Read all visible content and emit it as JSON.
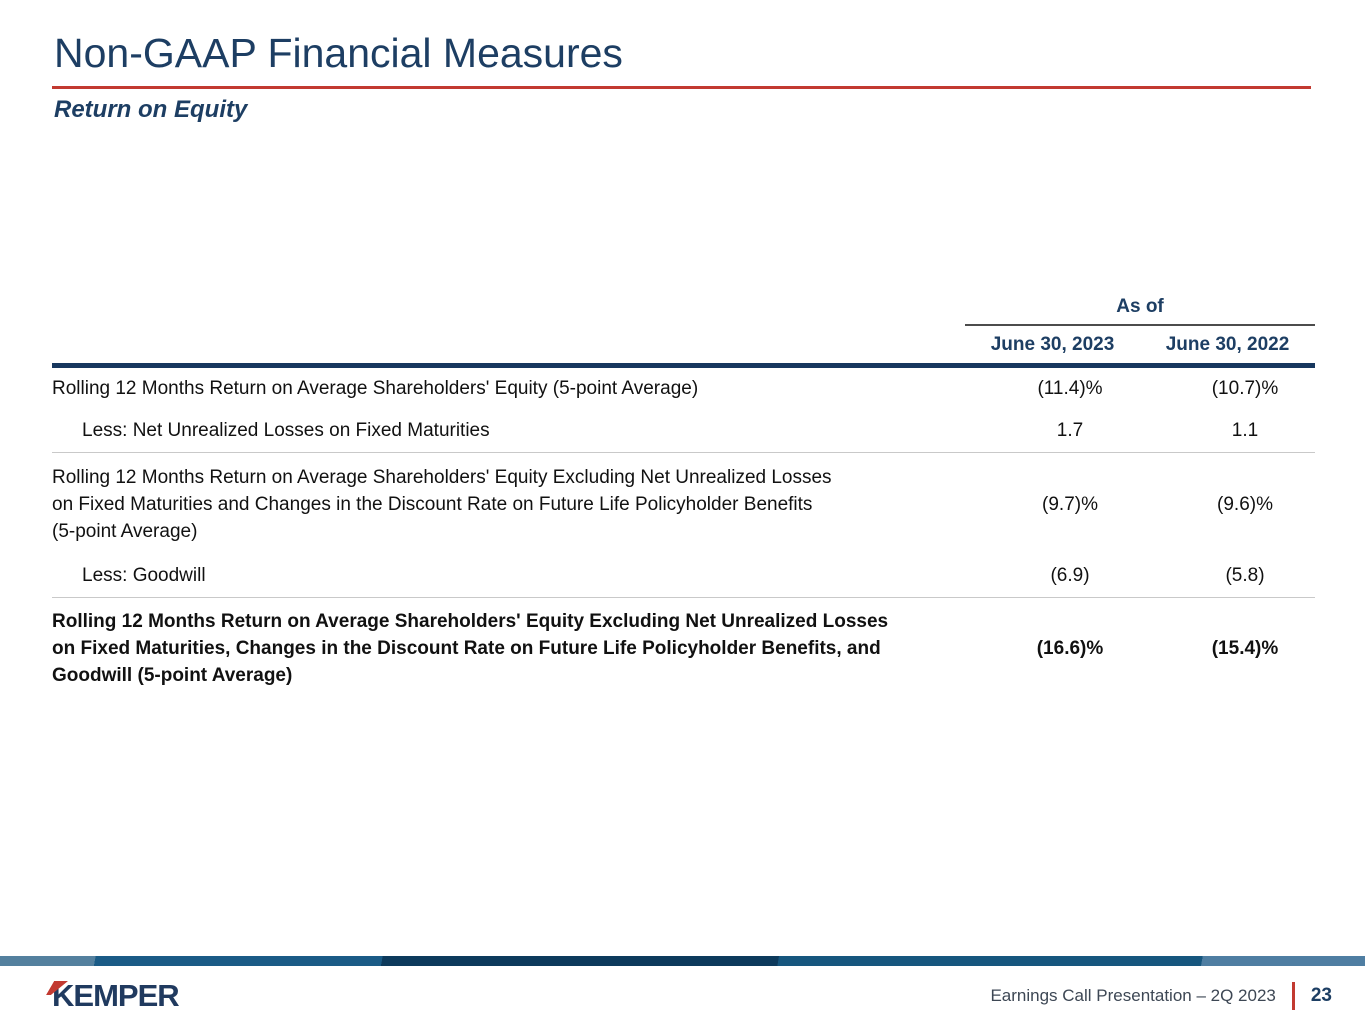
{
  "header": {
    "title": "Non-GAAP Financial Measures",
    "subtitle": "Return on Equity"
  },
  "table": {
    "group_header": "As of",
    "columns": [
      "June 30, 2023",
      "June 30, 2022"
    ],
    "rows": [
      {
        "label": "Rolling 12 Months Return on Average Shareholders' Equity (5-point Average)",
        "values": [
          "(11.4)%",
          "(10.7)%"
        ]
      },
      {
        "label": "Less: Net Unrealized Losses on Fixed Maturities",
        "values": [
          "1.7",
          "1.1"
        ]
      },
      {
        "label": "Rolling 12 Months Return on Average Shareholders' Equity Excluding Net Unrealized Losses\non Fixed Maturities and Changes in the Discount Rate on Future Life Policyholder Benefits\n(5-point Average)",
        "values": [
          "(9.7)%",
          "(9.6)%"
        ]
      },
      {
        "label": "Less: Goodwill",
        "values": [
          "(6.9)",
          "(5.8)"
        ]
      },
      {
        "label": "Rolling 12 Months Return on Average Shareholders' Equity Excluding Net Unrealized Losses\non Fixed Maturities, Changes in the Discount Rate on Future Life Policyholder Benefits, and\nGoodwill (5-point Average)",
        "values": [
          "(16.6)%",
          "(15.4)%"
        ]
      }
    ]
  },
  "footer": {
    "logo_text": "KEMPER",
    "caption": "Earnings Call Presentation – 2Q 2023",
    "page_number": "23"
  },
  "colors": {
    "navy": "#1d3e63",
    "red": "#c23a31",
    "body_text": "#111111",
    "separator_gray": "#c9c9c9",
    "accent_bar_blues": [
      "#54809e",
      "#1a5b86",
      "#0d3a5c",
      "#16567e",
      "#4f7ea2"
    ]
  }
}
